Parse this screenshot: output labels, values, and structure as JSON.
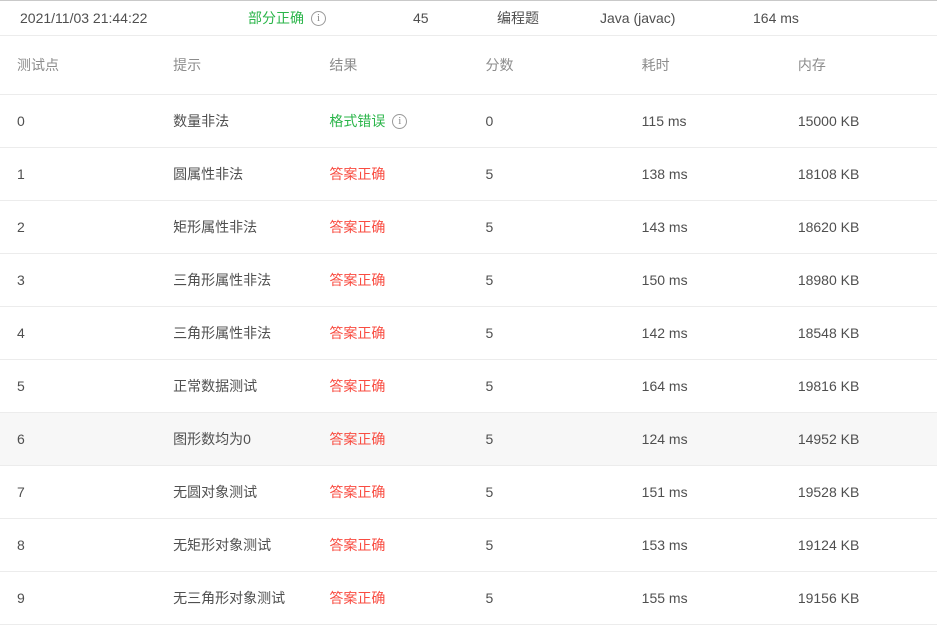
{
  "colors": {
    "green": "#2bb54a",
    "red": "#f94c41",
    "highlight": "#f7f7f7"
  },
  "summary": {
    "submitted_at": "2021/11/03 21:44:22",
    "status": "部分正确",
    "score": "45",
    "problem_type": "编程题",
    "compiler": "Java (javac)",
    "time": "164 ms"
  },
  "table": {
    "headers": [
      "测试点",
      "提示",
      "结果",
      "分数",
      "耗时",
      "内存"
    ],
    "rows": [
      {
        "id": "0",
        "hint": "数量非法",
        "result": "格式错误",
        "result_status": "green",
        "has_info": true,
        "highlighted": false,
        "score": "0",
        "time": "115 ms",
        "memory": "15000 KB"
      },
      {
        "id": "1",
        "hint": "圆属性非法",
        "result": "答案正确",
        "result_status": "red",
        "has_info": false,
        "highlighted": false,
        "score": "5",
        "time": "138 ms",
        "memory": "18108 KB"
      },
      {
        "id": "2",
        "hint": "矩形属性非法",
        "result": "答案正确",
        "result_status": "red",
        "has_info": false,
        "highlighted": false,
        "score": "5",
        "time": "143 ms",
        "memory": "18620 KB"
      },
      {
        "id": "3",
        "hint": "三角形属性非法",
        "result": "答案正确",
        "result_status": "red",
        "has_info": false,
        "highlighted": false,
        "score": "5",
        "time": "150 ms",
        "memory": "18980 KB"
      },
      {
        "id": "4",
        "hint": "三角形属性非法",
        "result": "答案正确",
        "result_status": "red",
        "has_info": false,
        "highlighted": false,
        "score": "5",
        "time": "142 ms",
        "memory": "18548 KB"
      },
      {
        "id": "5",
        "hint": "正常数据测试",
        "result": "答案正确",
        "result_status": "red",
        "has_info": false,
        "highlighted": false,
        "score": "5",
        "time": "164 ms",
        "memory": "19816 KB"
      },
      {
        "id": "6",
        "hint": "图形数均为0",
        "result": "答案正确",
        "result_status": "red",
        "has_info": false,
        "highlighted": true,
        "score": "5",
        "time": "124 ms",
        "memory": "14952 KB"
      },
      {
        "id": "7",
        "hint": "无圆对象测试",
        "result": "答案正确",
        "result_status": "red",
        "has_info": false,
        "highlighted": false,
        "score": "5",
        "time": "151 ms",
        "memory": "19528 KB"
      },
      {
        "id": "8",
        "hint": "无矩形对象测试",
        "result": "答案正确",
        "result_status": "red",
        "has_info": false,
        "highlighted": false,
        "score": "5",
        "time": "153 ms",
        "memory": "19124 KB"
      },
      {
        "id": "9",
        "hint": "无三角形对象测试",
        "result": "答案正确",
        "result_status": "red",
        "has_info": false,
        "highlighted": false,
        "score": "5",
        "time": "155 ms",
        "memory": "19156 KB"
      }
    ]
  }
}
